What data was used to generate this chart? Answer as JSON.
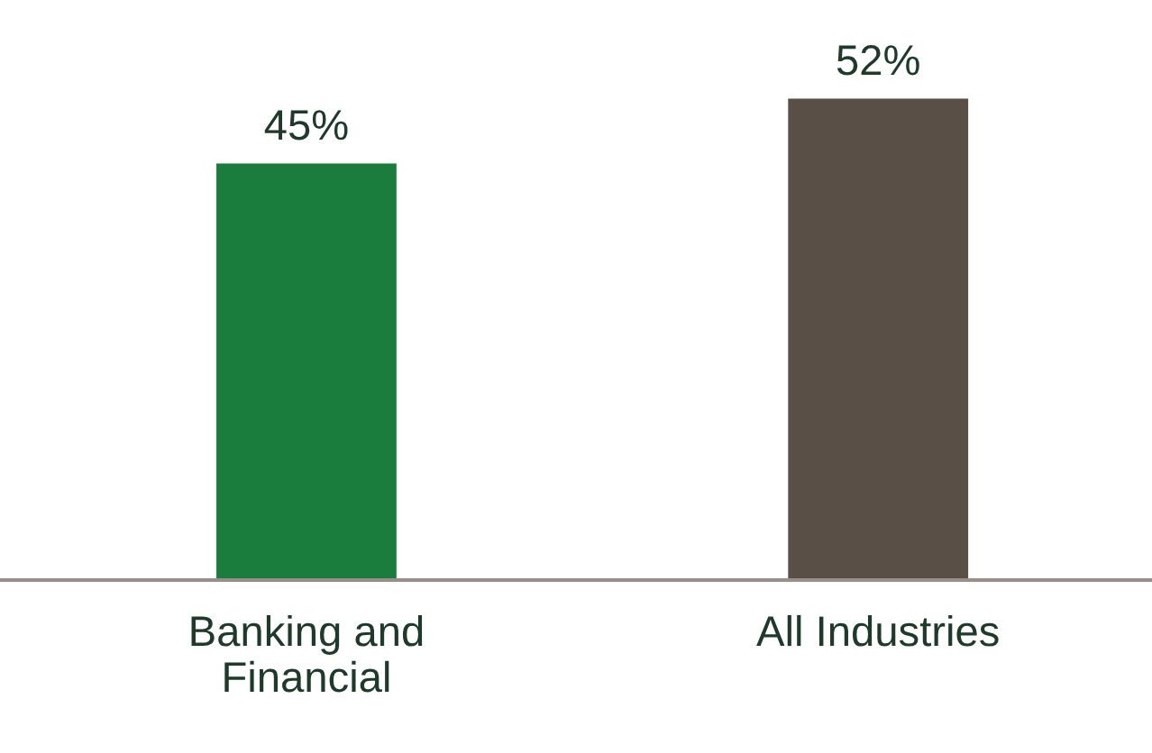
{
  "chart_data": {
    "type": "bar",
    "categories": [
      "Banking and\nFinancial",
      "All Industries"
    ],
    "values": [
      45,
      52
    ],
    "colors": [
      "#1a7d3e",
      "#5a4f47"
    ],
    "value_labels": [
      "45%",
      "52%"
    ]
  }
}
